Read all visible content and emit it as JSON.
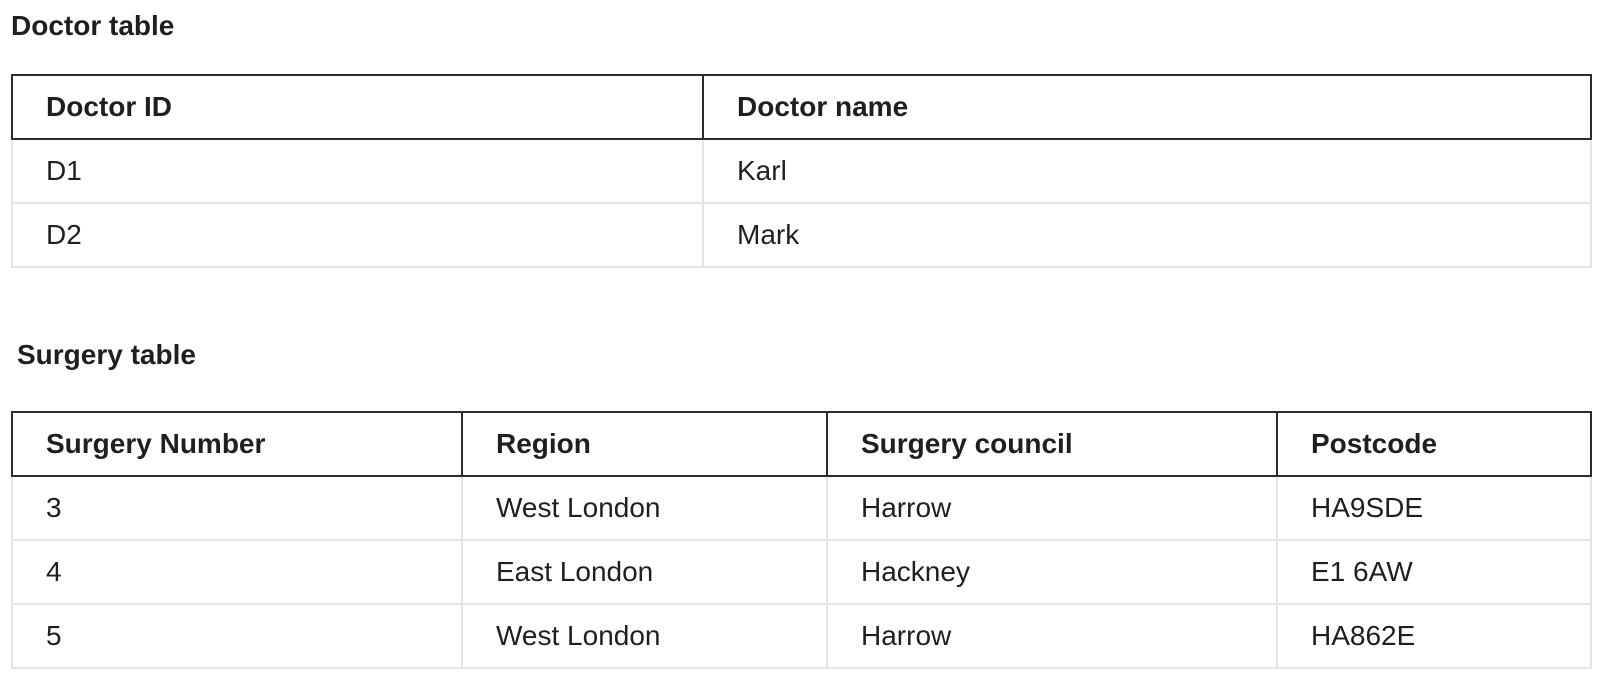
{
  "doctor_section": {
    "caption": "Doctor table",
    "columns": [
      "Doctor ID",
      "Doctor name"
    ],
    "rows": [
      [
        "D1",
        "Karl"
      ],
      [
        "D2",
        "Mark"
      ]
    ]
  },
  "surgery_section": {
    "caption": "Surgery table",
    "columns": [
      "Surgery Number",
      "Region",
      "Surgery council",
      "Postcode"
    ],
    "rows": [
      [
        "3",
        "West London",
        "Harrow",
        "HA9SDE"
      ],
      [
        "4",
        "East London",
        "Hackney",
        "E1 6AW"
      ],
      [
        "5",
        "West London",
        "Harrow",
        "HA862E"
      ]
    ]
  },
  "colors": {
    "text": "#1f1f1f",
    "header_border": "#2c2c2c",
    "cell_border": "#e4e4e4",
    "background": "#ffffff"
  }
}
